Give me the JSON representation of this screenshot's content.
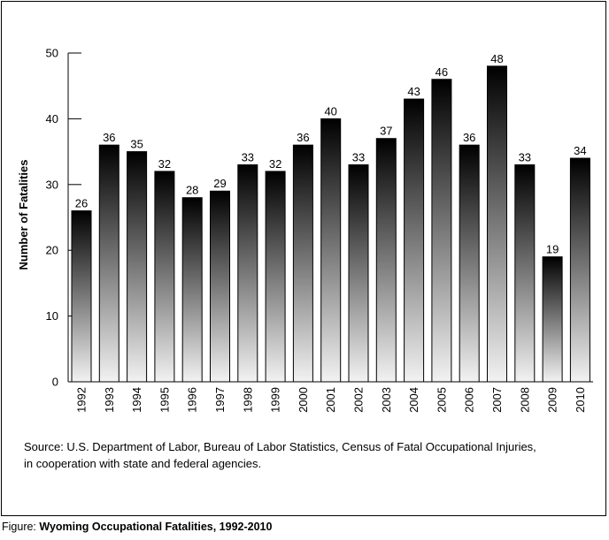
{
  "chart_data": {
    "type": "bar",
    "title": "Wyoming Occupational Fatalities, 1992-2010",
    "xlabel": "",
    "ylabel": "Number of Fatalities",
    "ylim": [
      0,
      50
    ],
    "yticks": [
      0,
      10,
      20,
      30,
      40,
      50
    ],
    "grid": false,
    "categories": [
      "1992",
      "1993",
      "1994",
      "1995",
      "1996",
      "1997",
      "1998",
      "1999",
      "2000",
      "2001",
      "2002",
      "2003",
      "2004",
      "2005",
      "2006",
      "2007",
      "2008",
      "2009",
      "2010"
    ],
    "values": [
      26,
      36,
      35,
      32,
      28,
      29,
      33,
      32,
      36,
      40,
      33,
      37,
      43,
      46,
      36,
      48,
      33,
      19,
      34
    ],
    "data_labels": true,
    "bar_gradient": {
      "top": "#000000",
      "bottom": "#f2f2f2"
    }
  },
  "source": {
    "line1": "Source: U.S. Department of Labor, Bureau of Labor Statistics, Census of Fatal Occupational Injuries,",
    "line2": "in cooperation with state and federal agencies."
  },
  "caption": {
    "prefix": "Figure: ",
    "title": "Wyoming Occupational Fatalities, 1992-2010"
  }
}
